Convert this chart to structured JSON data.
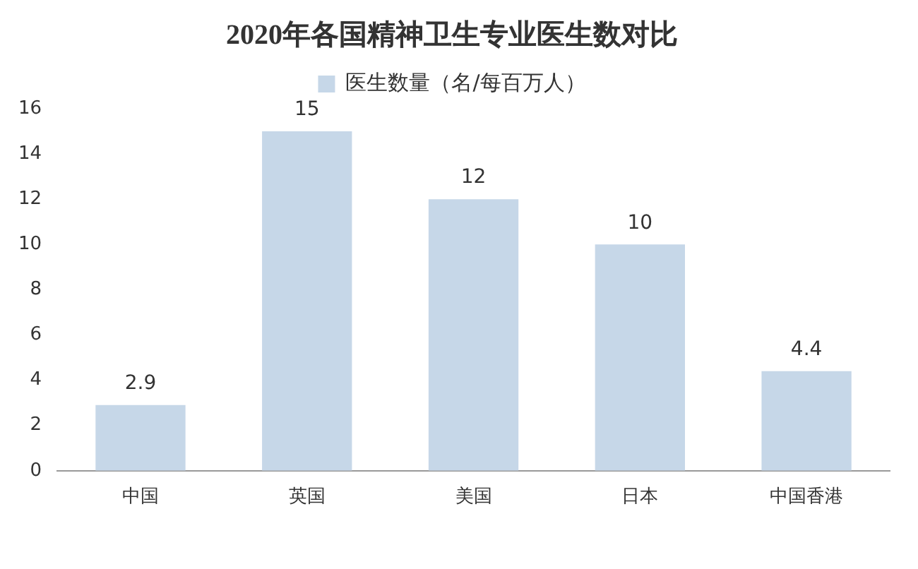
{
  "chart_data": {
    "type": "bar",
    "title": "2020年各国精神卫生专业医生数对比",
    "categories": [
      "中国",
      "英国",
      "美国",
      "日本",
      "中国香港"
    ],
    "series": [
      {
        "name": "医生数量（名/每百万人）",
        "color": "#c6d7e8",
        "values": [
          2.9,
          15,
          12,
          10,
          4.4
        ]
      }
    ],
    "ylim": [
      0,
      16
    ],
    "yticks": [
      0,
      2,
      4,
      6,
      8,
      10,
      12,
      14,
      16
    ],
    "grid": false,
    "legend": "top",
    "data_labels": true
  }
}
